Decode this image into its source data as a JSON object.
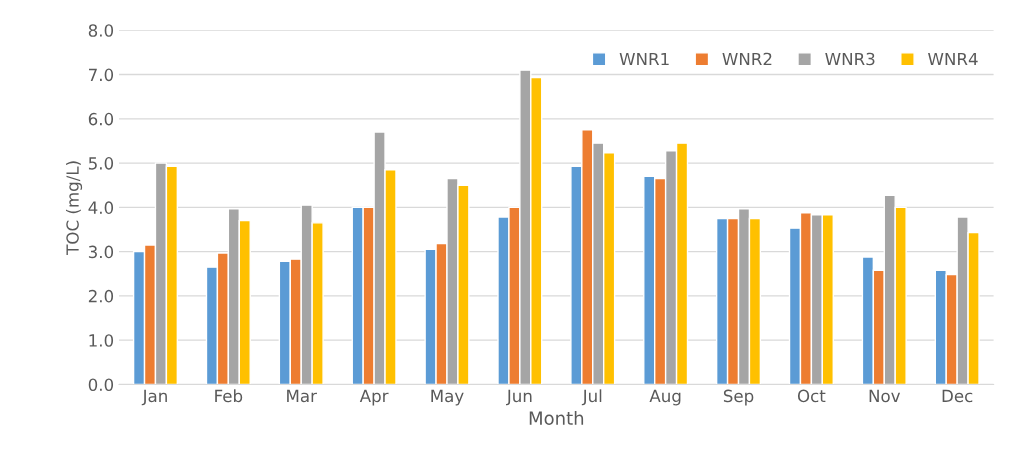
{
  "chart_data": {
    "type": "bar",
    "xlabel": "Month",
    "ylabel": "TOC (mg/L)",
    "categories": [
      "Jan",
      "Feb",
      "Mar",
      "Apr",
      "May",
      "Jun",
      "Jul",
      "Aug",
      "Sep",
      "Oct",
      "Nov",
      "Dec"
    ],
    "series": [
      {
        "name": "WNR1",
        "color": "#5b9bd5",
        "values": [
          3.0,
          2.65,
          2.78,
          4.0,
          3.05,
          3.78,
          4.93,
          4.7,
          3.75,
          3.53,
          2.88,
          2.58
        ]
      },
      {
        "name": "WNR2",
        "color": "#ed7d31",
        "values": [
          3.15,
          2.97,
          2.83,
          4.0,
          3.18,
          4.0,
          5.75,
          4.65,
          3.75,
          3.88,
          2.58,
          2.48
        ]
      },
      {
        "name": "WNR3",
        "color": "#a5a5a5",
        "values": [
          5.0,
          3.97,
          4.05,
          5.7,
          4.65,
          7.1,
          5.45,
          5.28,
          3.97,
          3.83,
          4.27,
          3.78
        ]
      },
      {
        "name": "WNR4",
        "color": "#ffc000",
        "values": [
          4.93,
          3.7,
          3.65,
          4.85,
          4.5,
          6.93,
          5.23,
          5.45,
          3.75,
          3.83,
          4.0,
          3.43
        ]
      }
    ],
    "ylim": [
      0,
      8
    ],
    "yticks": [
      {
        "value": 0,
        "label": "0.0"
      },
      {
        "value": 1,
        "label": "1.0"
      },
      {
        "value": 2,
        "label": "2.0"
      },
      {
        "value": 3,
        "label": "3.0"
      },
      {
        "value": 4,
        "label": "4.0"
      },
      {
        "value": 5,
        "label": "5.0"
      },
      {
        "value": 6,
        "label": "6.0"
      },
      {
        "value": 7,
        "label": "7.0"
      },
      {
        "value": 8,
        "label": "8.0"
      }
    ],
    "grid": "y",
    "legend": "top right"
  }
}
